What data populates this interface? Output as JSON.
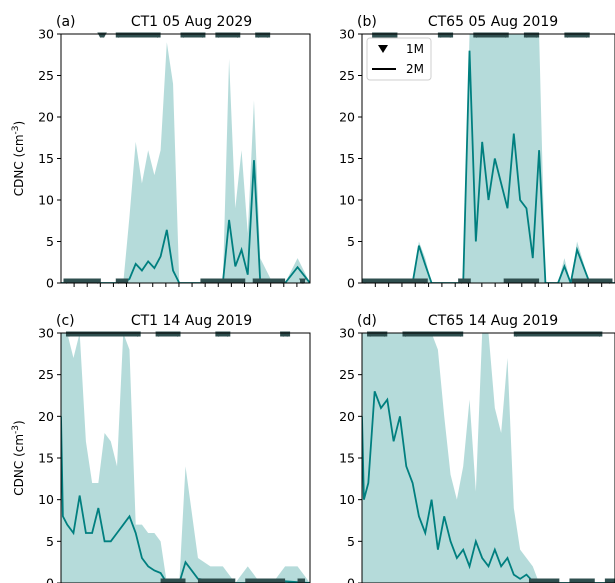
{
  "figure": {
    "legend": {
      "entries": [
        "1M",
        "2M"
      ]
    }
  },
  "chart_data": [
    {
      "type": "line",
      "panel_label": "(a)",
      "title": "CT1 05 Aug 2029",
      "ylabel": "CDNC (cm$^{-3}$)",
      "ylim": [
        0,
        30
      ],
      "yticks": [
        "0",
        "5",
        "10",
        "15",
        "20",
        "25",
        "30"
      ],
      "x": [
        0,
        2,
        4,
        6,
        8,
        10,
        11,
        12,
        13,
        14,
        15,
        16,
        17,
        18,
        19,
        20,
        22,
        24,
        26,
        27,
        28,
        29,
        30,
        31,
        32,
        34,
        36,
        38,
        40
      ],
      "series": [
        {
          "name": "2M",
          "color": "#007f7f",
          "values": [
            0,
            0,
            0,
            0,
            0,
            0,
            0.5,
            2.3,
            1.5,
            2.6,
            1.8,
            3.2,
            6.4,
            1.5,
            0,
            0,
            0,
            0,
            0,
            7.6,
            2.0,
            4.0,
            1.0,
            14.8,
            0.2,
            0,
            0,
            1.9,
            0
          ]
        },
        {
          "name": "2M range",
          "color": "#a8d5d3",
          "values": [
            0,
            0,
            0,
            0,
            0,
            0,
            8,
            17,
            12,
            16,
            13,
            16,
            29,
            24,
            0,
            0,
            0,
            0,
            0,
            27,
            9,
            16,
            6,
            22,
            3,
            0,
            0,
            3,
            0
          ]
        }
      ],
      "1M_markers_top": "intermittent",
      "1M_markers_bottom": "intermittent"
    },
    {
      "type": "line",
      "panel_label": "(b)",
      "title": "CT65 05 Aug 2019",
      "ylim": [
        0,
        30
      ],
      "yticks": [
        "0",
        "5",
        "10",
        "15",
        "20",
        "25",
        "30"
      ],
      "x": [
        0,
        2,
        4,
        6,
        8,
        9,
        10,
        11,
        12,
        14,
        16,
        17,
        18,
        19,
        20,
        21,
        22,
        23,
        24,
        25,
        26,
        27,
        28,
        29,
        30,
        31,
        32,
        33,
        34,
        36,
        38,
        40
      ],
      "series": [
        {
          "name": "2M",
          "color": "#007f7f",
          "values": [
            0,
            0,
            0,
            0,
            0,
            4.5,
            2.2,
            0,
            0,
            0,
            0,
            28,
            5,
            17,
            10,
            15,
            12,
            9,
            18,
            10,
            9,
            3,
            16,
            0,
            0,
            0,
            2,
            0,
            4,
            0,
            0,
            0
          ]
        },
        {
          "name": "2M range",
          "color": "#a8d5d3",
          "values": [
            0,
            0,
            0,
            0,
            0,
            5,
            3,
            0,
            0,
            0,
            0,
            30,
            30,
            30,
            30,
            30,
            30,
            30,
            30,
            30,
            30,
            30,
            30,
            0,
            0,
            0,
            3,
            0,
            5,
            0,
            0,
            0
          ]
        }
      ],
      "1M_markers_top": "intermittent",
      "1M_markers_bottom": "intermittent"
    },
    {
      "type": "line",
      "panel_label": "(c)",
      "title": "CT1 14 Aug 2019",
      "ylabel": "CDNC (cm$^{-3}$)",
      "ylim": [
        0,
        30
      ],
      "yticks": [
        "0",
        "5",
        "10",
        "15",
        "20",
        "25",
        "30"
      ],
      "x": [
        0,
        0.3,
        1,
        2,
        3,
        4,
        5,
        6,
        7,
        8,
        9,
        10,
        11,
        12,
        13,
        14,
        15,
        16,
        17,
        18,
        19,
        20,
        22,
        24,
        26,
        28,
        30,
        32,
        34,
        36,
        38,
        40
      ],
      "series": [
        {
          "name": "2M",
          "color": "#007f7f",
          "values": [
            20,
            8,
            7,
            6,
            10.5,
            6,
            6,
            9,
            5,
            5,
            6,
            7,
            8,
            6,
            3,
            2,
            1.5,
            1.2,
            0,
            0,
            0,
            2.5,
            0.5,
            0.3,
            0.2,
            0,
            0,
            0,
            0,
            0.2,
            0.1,
            0
          ]
        },
        {
          "name": "2M range",
          "color": "#a8d5d3",
          "values": [
            30,
            30,
            30,
            27,
            30,
            17,
            12,
            12,
            18,
            17,
            14,
            30,
            28,
            7,
            7,
            6,
            6,
            5,
            0,
            0,
            0,
            14,
            3,
            2,
            2,
            0,
            2,
            0,
            0,
            2,
            2,
            0
          ]
        }
      ],
      "1M_markers_top": "intermittent",
      "1M_markers_bottom": "intermittent"
    },
    {
      "type": "line",
      "panel_label": "(d)",
      "title": "CT65 14 Aug 2019",
      "ylim": [
        0,
        30
      ],
      "yticks": [
        "0",
        "5",
        "10",
        "15",
        "20",
        "25",
        "30"
      ],
      "x": [
        0,
        0.3,
        1,
        2,
        3,
        4,
        5,
        6,
        7,
        8,
        9,
        10,
        11,
        12,
        13,
        14,
        15,
        16,
        17,
        18,
        19,
        20,
        21,
        22,
        23,
        24,
        25,
        26,
        27,
        28,
        30,
        32,
        34,
        36,
        38,
        40
      ],
      "series": [
        {
          "name": "2M",
          "color": "#007f7f",
          "values": [
            20,
            10,
            12,
            23,
            21,
            22,
            17,
            20,
            14,
            12,
            8,
            6,
            10,
            4,
            8,
            5,
            3,
            4,
            2,
            5,
            3,
            2,
            4,
            2,
            3,
            1,
            0.5,
            1,
            0.2,
            0,
            0,
            0,
            0,
            0,
            0,
            0
          ]
        },
        {
          "name": "2M range",
          "color": "#a8d5d3",
          "values": [
            30,
            30,
            30,
            30,
            30,
            30,
            30,
            30,
            30,
            30,
            30,
            30,
            30,
            28,
            20,
            13,
            10,
            14,
            22,
            11,
            30,
            30,
            21,
            18,
            27,
            9,
            4,
            3,
            2,
            0,
            0,
            0,
            0,
            0,
            0,
            0
          ]
        }
      ],
      "1M_markers_top": "intermittent",
      "1M_markers_bottom": "intermittent"
    }
  ]
}
